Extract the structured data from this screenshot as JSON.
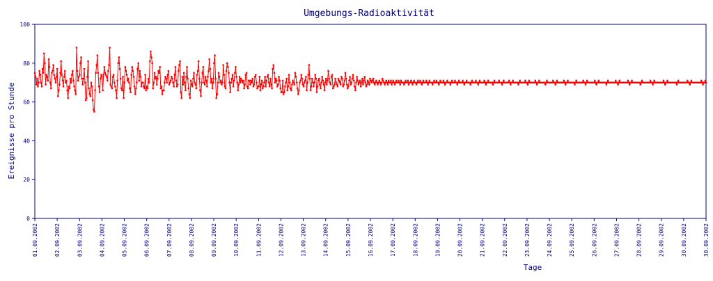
{
  "chart_data": {
    "type": "line",
    "title": "Umgebungs-Radioaktivität",
    "xlabel": "Tage",
    "ylabel": "Ereignisse pro Stunde",
    "ylim": [
      0,
      100
    ],
    "yticks": [
      0,
      20,
      40,
      60,
      80,
      100
    ],
    "x_tick_labels": [
      "01.09.2002",
      "02.09.2002",
      "03.09.2002",
      "04.09.2002",
      "05.09.2002",
      "06.09.2002",
      "07.09.2002",
      "08.09.2002",
      "09.09.2002",
      "10.09.2002",
      "11.09.2002",
      "12.09.2002",
      "13.09.2002",
      "14.09.2002",
      "15.09.2002",
      "16.09.2002",
      "17.09.2002",
      "18.09.2002",
      "19.09.2002",
      "20.09.2002",
      "21.09.2002",
      "22.09.2002",
      "23.09.2002",
      "24.09.2002",
      "25.09.2002",
      "26.09.2002",
      "27.09.2002",
      "28.09.2002",
      "29.09.2002",
      "30.09.2002",
      "30.09.2002"
    ],
    "colors": {
      "series": "#ff0000",
      "axis": "#000080",
      "text": "#000080"
    },
    "grid": false,
    "series": [
      {
        "values": [
          75,
          73,
          69,
          72,
          68,
          70,
          76,
          74,
          70,
          68,
          77,
          75,
          85,
          80,
          69,
          74,
          73,
          71,
          82,
          78,
          70,
          67,
          75,
          76,
          79,
          74,
          72,
          70,
          73,
          77,
          63,
          66,
          69,
          75,
          81,
          74,
          71,
          68,
          73,
          76,
          70,
          71,
          66,
          62,
          68,
          67,
          72,
          70,
          74,
          76,
          71,
          68,
          66,
          64,
          88,
          76,
          71,
          73,
          74,
          80,
          83,
          72,
          69,
          72,
          77,
          70,
          61,
          62,
          73,
          81,
          67,
          64,
          63,
          70,
          68,
          61,
          56,
          55,
          66,
          75,
          79,
          84,
          75,
          68,
          65,
          72,
          74,
          73,
          66,
          74,
          78,
          75,
          74,
          73,
          71,
          76,
          79,
          88,
          69,
          68,
          67,
          73,
          74,
          70,
          68,
          66,
          62,
          71,
          80,
          83,
          77,
          72,
          67,
          66,
          73,
          62,
          70,
          78,
          76,
          74,
          71,
          72,
          70,
          67,
          65,
          74,
          78,
          76,
          73,
          68,
          64,
          67,
          70,
          77,
          80,
          71,
          76,
          73,
          68,
          70,
          70,
          68,
          67,
          74,
          66,
          68,
          67,
          72,
          70,
          81,
          86,
          83,
          80,
          67,
          70,
          75,
          72,
          73,
          69,
          72,
          76,
          75,
          78,
          67,
          68,
          64,
          66,
          66,
          70,
          73,
          72,
          70,
          74,
          76,
          69,
          70,
          71,
          73,
          72,
          70,
          68,
          74,
          78,
          71,
          68,
          69,
          76,
          79,
          81,
          65,
          62,
          73,
          69,
          75,
          70,
          66,
          73,
          78,
          72,
          67,
          64,
          62,
          71,
          69,
          68,
          72,
          75,
          70,
          69,
          67,
          74,
          76,
          81,
          72,
          66,
          63,
          70,
          75,
          78,
          70,
          69,
          73,
          71,
          68,
          73,
          76,
          82,
          77,
          70,
          72,
          67,
          70,
          80,
          84,
          72,
          62,
          64,
          70,
          75,
          73,
          70,
          71,
          69,
          70,
          79,
          74,
          68,
          67,
          76,
          80,
          78,
          75,
          70,
          65,
          70,
          72,
          74,
          68,
          71,
          75,
          78,
          73,
          70,
          66,
          69,
          73,
          70,
          72,
          71,
          70,
          71,
          67,
          69,
          74,
          75,
          68,
          67,
          71,
          71,
          69,
          71,
          70,
          72,
          68,
          69,
          73,
          74,
          70,
          67,
          68,
          68,
          73,
          66,
          69,
          71,
          67,
          68,
          70,
          73,
          68,
          71,
          73,
          74,
          70,
          68,
          72,
          69,
          67,
          77,
          79,
          75,
          70,
          72,
          71,
          68,
          69,
          73,
          71,
          67,
          65,
          65,
          71,
          64,
          65,
          68,
          70,
          72,
          66,
          68,
          74,
          70,
          67,
          66,
          69,
          71,
          70,
          69,
          75,
          73,
          70,
          67,
          64,
          66,
          70,
          71,
          74,
          72,
          69,
          68,
          70,
          71,
          73,
          66,
          70,
          74,
          79,
          72,
          66,
          68,
          72,
          70,
          68,
          70,
          74,
          72,
          65,
          68,
          71,
          72,
          69,
          67,
          70,
          73,
          71,
          69,
          66,
          70,
          72,
          69,
          71,
          76,
          72,
          70,
          69,
          73,
          74,
          67,
          68,
          69,
          72,
          70,
          69,
          68,
          72,
          71,
          70,
          69,
          73,
          72,
          68,
          69,
          71,
          75,
          72,
          69,
          67,
          68,
          71,
          73,
          69,
          70,
          72,
          74,
          71,
          68,
          66,
          70,
          73,
          71,
          69,
          70,
          71,
          68,
          70,
          72,
          69,
          71,
          73,
          70,
          68,
          69,
          71,
          70,
          69,
          72,
          71,
          70,
          71,
          72,
          70,
          69,
          70,
          71,
          70,
          69,
          70,
          71,
          70,
          69,
          70,
          72,
          71,
          70,
          69,
          70,
          71,
          70,
          69,
          71,
          70,
          70,
          71,
          69,
          70,
          71,
          70,
          69,
          70,
          71,
          70,
          70,
          71,
          70,
          69,
          71,
          70,
          70,
          70,
          69,
          70,
          71,
          70,
          70,
          71,
          69,
          70,
          70,
          71,
          70,
          69,
          70,
          71,
          70,
          70,
          69,
          70,
          71,
          70,
          70,
          71,
          70,
          69,
          70,
          71,
          70,
          70,
          70,
          71,
          70,
          69,
          70,
          71,
          70,
          70,
          70,
          69,
          70,
          71,
          70,
          70,
          71,
          70,
          70,
          69,
          70,
          71,
          70,
          70,
          70,
          71,
          70,
          69,
          70,
          70,
          71,
          70,
          70,
          70,
          69,
          70,
          71,
          70,
          70,
          70,
          71,
          70,
          70,
          69,
          70,
          71,
          70,
          70,
          70,
          70,
          71,
          70,
          69,
          70,
          70,
          71,
          70,
          70,
          70,
          70,
          69,
          70,
          71,
          70,
          70,
          70,
          70,
          71,
          70,
          70,
          69,
          70,
          71,
          70,
          70,
          70,
          70,
          70,
          71,
          70,
          69,
          70,
          70,
          71,
          70,
          70,
          70,
          70,
          70,
          69,
          70,
          71,
          70,
          70,
          70,
          70,
          70,
          71,
          70,
          70,
          70,
          69,
          70,
          71,
          70,
          70,
          70,
          70,
          70,
          70,
          71,
          70,
          69,
          70,
          70,
          71,
          70,
          70,
          70,
          70,
          70,
          70,
          69,
          70,
          71,
          70,
          70,
          70,
          70,
          70,
          70,
          71,
          70,
          70,
          69,
          70,
          71,
          70,
          70,
          70,
          70,
          70,
          70,
          70,
          71,
          70,
          69,
          70,
          70,
          71,
          70,
          70,
          70,
          70,
          70,
          70,
          70,
          69,
          70,
          71,
          70,
          70,
          70,
          70,
          70,
          70,
          70,
          71,
          70,
          70,
          69,
          70,
          71,
          70,
          70,
          70,
          70,
          70,
          70,
          70,
          70,
          71,
          70,
          69,
          70,
          70,
          71,
          70,
          70,
          70,
          70,
          70,
          70,
          70,
          70,
          69,
          70,
          71,
          70,
          70,
          70,
          70,
          70,
          70,
          70,
          70,
          71,
          70,
          70,
          69,
          70,
          71,
          70,
          70,
          70,
          70,
          70,
          70,
          70,
          70,
          70,
          71,
          70,
          69,
          70,
          70,
          71,
          70,
          70,
          70,
          70,
          70,
          70,
          70,
          70,
          70,
          69,
          70,
          71,
          70,
          70,
          70,
          70,
          70,
          70,
          70,
          70,
          70,
          71,
          70,
          70,
          69,
          70,
          71,
          70,
          70,
          70,
          70,
          70,
          70,
          70,
          70,
          70,
          70,
          71,
          70,
          69,
          70,
          70,
          71,
          70,
          70,
          70,
          70,
          70,
          70,
          70,
          70,
          70,
          70,
          69,
          70,
          71,
          70,
          70,
          70,
          70,
          70,
          70,
          70,
          70,
          70,
          70,
          71,
          70,
          70,
          69,
          70,
          71,
          70,
          70,
          70,
          70,
          70,
          70,
          70,
          70,
          70,
          70,
          70,
          71,
          70,
          69,
          70,
          70,
          71,
          70,
          70,
          70,
          70,
          70,
          70,
          70,
          70,
          70,
          70,
          70,
          69,
          70,
          71,
          70,
          70,
          70,
          70,
          70,
          70,
          70,
          70,
          70,
          70,
          70,
          71,
          70,
          70,
          69,
          70,
          71,
          70,
          70,
          70,
          70,
          70,
          70,
          70,
          70,
          70,
          70,
          70,
          70,
          71,
          70,
          69,
          70,
          70,
          71,
          70
        ]
      }
    ]
  }
}
